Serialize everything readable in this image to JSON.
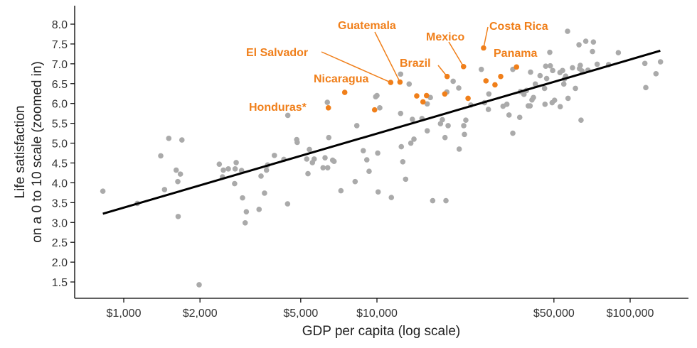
{
  "chart_data": {
    "type": "scatter",
    "title": "",
    "xlabel": "GDP per capita (log scale)",
    "ylabel_lines": [
      "Life satisfaction",
      "on a 0 to 10 scale (zoomed in)"
    ],
    "x_scale": "log",
    "xlim": [
      700,
      170000
    ],
    "ylim": [
      1.3,
      8.35
    ],
    "x_ticks": [
      1000,
      2000,
      5000,
      10000,
      50000,
      100000
    ],
    "x_tick_labels": [
      "$1,000",
      "$2,000",
      "$5,000",
      "$10,000",
      "$50,000",
      "$100,000"
    ],
    "y_ticks": [
      1.5,
      2.0,
      2.5,
      3.0,
      3.5,
      4.0,
      4.5,
      5.0,
      5.5,
      6.0,
      6.5,
      7.0,
      7.5,
      8.0
    ],
    "y_tick_labels": [
      "1.5",
      "2.0",
      "2.5",
      "3.0",
      "3.5",
      "4.0",
      "4.5",
      "5.0",
      "5.5",
      "6.0",
      "6.5",
      "7.0",
      "7.5",
      "8.0"
    ],
    "grid": false,
    "legend": "none",
    "colors": {
      "other": "#AAAAAA",
      "highlight": "#F07F1A",
      "trend": "#000000"
    },
    "trend_line": {
      "x": [
        827,
        131500
      ],
      "y": [
        3.22,
        7.33
      ]
    },
    "series": [
      {
        "role": "other countries",
        "points": [
          [
            827,
            3.79
          ],
          [
            1131,
            3.48
          ],
          [
            1400,
            4.68
          ],
          [
            1506,
            5.12
          ],
          [
            1697,
            5.08
          ],
          [
            1611,
            4.32
          ],
          [
            1674,
            4.22
          ],
          [
            1635,
            4.03
          ],
          [
            1449,
            3.83
          ],
          [
            1640,
            3.15
          ],
          [
            1985,
            1.43
          ],
          [
            2384,
            4.47
          ],
          [
            2473,
            4.32
          ],
          [
            2588,
            4.35
          ],
          [
            2780,
            4.51
          ],
          [
            2754,
            4.35
          ],
          [
            2920,
            4.31
          ],
          [
            2455,
            4.15
          ],
          [
            2741,
            3.98
          ],
          [
            2945,
            3.62
          ],
          [
            3049,
            3.27
          ],
          [
            3017,
            2.99
          ],
          [
            3423,
            3.33
          ],
          [
            3485,
            4.17
          ],
          [
            3597,
            3.74
          ],
          [
            3700,
            4.45
          ],
          [
            3662,
            4.32
          ],
          [
            3935,
            4.69
          ],
          [
            4289,
            4.59
          ],
          [
            4436,
            3.47
          ],
          [
            4446,
            5.7
          ],
          [
            4821,
            5.09
          ],
          [
            4842,
            5.02
          ],
          [
            12400,
            6.74
          ],
          [
            13400,
            6.49
          ],
          [
            6368,
            6.03
          ],
          [
            9886,
            6.17
          ],
          [
            10000,
            6.2
          ],
          [
            10260,
            5.89
          ],
          [
            12400,
            5.75
          ],
          [
            8327,
            5.44
          ],
          [
            13800,
            5.6
          ],
          [
            15060,
            5.62
          ],
          [
            15800,
            5.31
          ],
          [
            16250,
            6.15
          ],
          [
            15800,
            5.99
          ],
          [
            17820,
            5.49
          ],
          [
            18130,
            5.59
          ],
          [
            19100,
            5.44
          ],
          [
            18570,
            5.14
          ],
          [
            18880,
            6.29
          ],
          [
            20000,
            6.56
          ],
          [
            21040,
            6.39
          ],
          [
            22440,
            5.58
          ],
          [
            22020,
            5.44
          ],
          [
            22160,
            5.22
          ],
          [
            21130,
            4.85
          ],
          [
            23480,
            5.96
          ],
          [
            25840,
            6.86
          ],
          [
            27670,
            6.24
          ],
          [
            27550,
            5.85
          ],
          [
            6452,
            5.14
          ],
          [
            5410,
            4.84
          ],
          [
            5280,
            4.6
          ],
          [
            5650,
            4.6
          ],
          [
            5560,
            4.51
          ],
          [
            6237,
            4.63
          ],
          [
            6683,
            4.57
          ],
          [
            6770,
            4.54
          ],
          [
            6125,
            4.38
          ],
          [
            6390,
            4.38
          ],
          [
            5340,
            4.23
          ],
          [
            8830,
            4.81
          ],
          [
            10070,
            4.75
          ],
          [
            9120,
            4.58
          ],
          [
            9310,
            4.29
          ],
          [
            8200,
            4.03
          ],
          [
            7206,
            3.8
          ],
          [
            10110,
            3.77
          ],
          [
            11400,
            3.63
          ],
          [
            12480,
            4.91
          ],
          [
            13610,
            5.0
          ],
          [
            14000,
            5.1
          ],
          [
            12650,
            4.53
          ],
          [
            12980,
            4.09
          ],
          [
            16600,
            3.55
          ],
          [
            18730,
            3.55
          ],
          [
            56600,
            7.82
          ],
          [
            62800,
            7.48
          ],
          [
            66800,
            7.57
          ],
          [
            71600,
            7.55
          ],
          [
            71000,
            7.31
          ],
          [
            48150,
            7.29
          ],
          [
            89800,
            7.28
          ],
          [
            34400,
            6.86
          ],
          [
            46400,
            6.94
          ],
          [
            48380,
            6.95
          ],
          [
            49430,
            6.83
          ],
          [
            40430,
            6.79
          ],
          [
            44080,
            6.7
          ],
          [
            46800,
            6.63
          ],
          [
            52820,
            6.78
          ],
          [
            54080,
            6.83
          ],
          [
            59200,
            6.9
          ],
          [
            63550,
            6.96
          ],
          [
            63060,
            6.88
          ],
          [
            64560,
            6.82
          ],
          [
            68130,
            6.84
          ],
          [
            74100,
            6.99
          ],
          [
            82200,
            6.98
          ],
          [
            55630,
            6.69
          ],
          [
            55040,
            6.62
          ],
          [
            54700,
            6.49
          ],
          [
            42230,
            6.49
          ],
          [
            45920,
            6.38
          ],
          [
            60800,
            6.38
          ],
          [
            36870,
            6.3
          ],
          [
            38070,
            6.23
          ],
          [
            38990,
            6.33
          ],
          [
            26600,
            6.02
          ],
          [
            41500,
            6.15
          ],
          [
            40950,
            6.09
          ],
          [
            56860,
            6.13
          ],
          [
            50280,
            6.08
          ],
          [
            49200,
            6.02
          ],
          [
            46100,
            5.98
          ],
          [
            52950,
            5.92
          ],
          [
            31480,
            5.93
          ],
          [
            32590,
            5.98
          ],
          [
            39590,
            5.94
          ],
          [
            40270,
            5.94
          ],
          [
            33240,
            5.71
          ],
          [
            36630,
            5.65
          ],
          [
            63970,
            5.58
          ],
          [
            34400,
            5.25
          ],
          [
            114300,
            7.01
          ],
          [
            131800,
            7.05
          ],
          [
            126500,
            6.75
          ],
          [
            115300,
            6.4
          ]
        ]
      },
      {
        "role": "highlighted countries",
        "points": [
          {
            "x": 6430,
            "y": 5.89,
            "label": "Honduras*"
          },
          {
            "x": 7460,
            "y": 6.28,
            "label": "Nicaragua"
          },
          {
            "x": 9790,
            "y": 5.84
          },
          {
            "x": 11330,
            "y": 6.53,
            "label": "El Salvador"
          },
          {
            "x": 12330,
            "y": 6.54,
            "label": "Guatemala"
          },
          {
            "x": 14360,
            "y": 6.19
          },
          {
            "x": 15700,
            "y": 6.2
          },
          {
            "x": 15200,
            "y": 6.04
          },
          {
            "x": 18530,
            "y": 6.24
          },
          {
            "x": 18930,
            "y": 6.68,
            "label": "Brazil"
          },
          {
            "x": 21980,
            "y": 6.93,
            "label": "Mexico"
          },
          {
            "x": 22900,
            "y": 6.13
          },
          {
            "x": 26950,
            "y": 6.57
          },
          {
            "x": 29250,
            "y": 6.47
          },
          {
            "x": 30820,
            "y": 6.68
          },
          {
            "x": 35580,
            "y": 6.92,
            "label": "Panama"
          },
          {
            "x": 26370,
            "y": 7.4,
            "label": "Costa Rica"
          }
        ]
      }
    ]
  }
}
